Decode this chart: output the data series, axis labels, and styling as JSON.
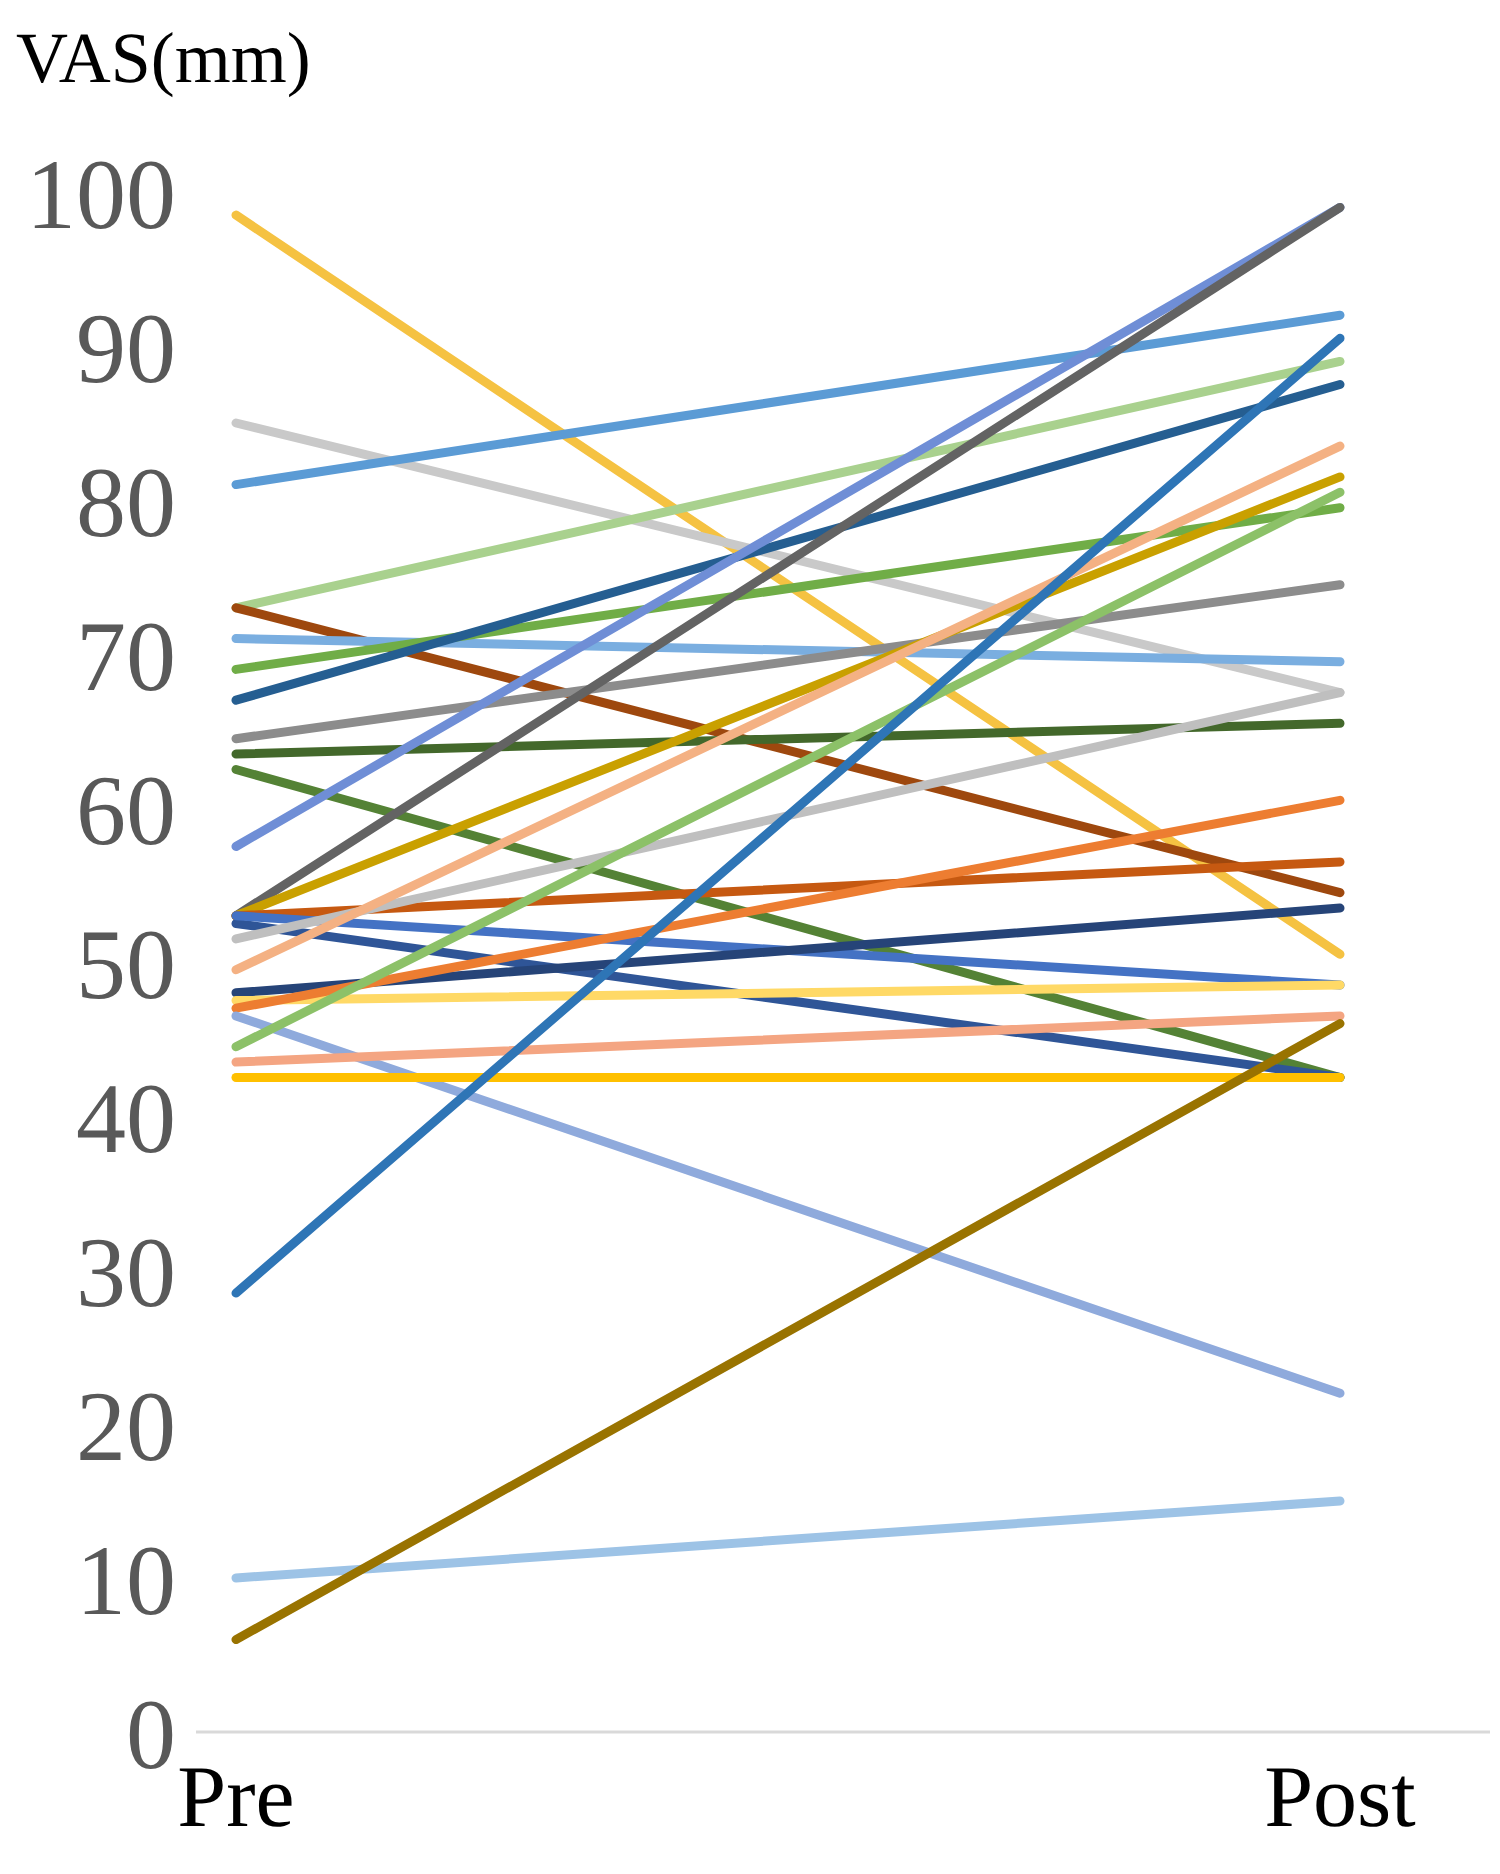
{
  "chart_data": {
    "type": "line",
    "ylabel": "VAS(mm)",
    "categories": [
      "Pre",
      "Post"
    ],
    "ylim": [
      0,
      100
    ],
    "yticks": [
      0,
      10,
      20,
      30,
      40,
      50,
      60,
      70,
      80,
      90,
      100
    ],
    "grid": false,
    "legend": false,
    "marker": "none",
    "line_style": "solid",
    "series": [
      {
        "color": "#f5c242",
        "values": [
          98.5,
          50.5
        ]
      },
      {
        "color": "#c9c9c9",
        "values": [
          85,
          67.5
        ]
      },
      {
        "color": "#5b9bd5",
        "values": [
          81,
          92
        ]
      },
      {
        "color": "#a9d18e",
        "values": [
          73,
          89
        ]
      },
      {
        "color": "#9e480e",
        "values": [
          73,
          54.5
        ]
      },
      {
        "color": "#7aaee0",
        "values": [
          71,
          69.5
        ]
      },
      {
        "color": "#70ad47",
        "values": [
          69,
          79.5
        ]
      },
      {
        "color": "#255e91",
        "values": [
          67,
          87.5
        ]
      },
      {
        "color": "#8c8c8c",
        "values": [
          64.5,
          74.5
        ]
      },
      {
        "color": "#43682b",
        "values": [
          63.5,
          65.5
        ]
      },
      {
        "color": "#548235",
        "values": [
          62.5,
          42.5
        ]
      },
      {
        "color": "#6f8ed6",
        "values": [
          57.5,
          99
        ]
      },
      {
        "color": "#636363",
        "values": [
          53,
          99
        ]
      },
      {
        "color": "#c9a000",
        "values": [
          53,
          81.5
        ]
      },
      {
        "color": "#c65911",
        "values": [
          53,
          56.5
        ]
      },
      {
        "color": "#2f5597",
        "values": [
          52.5,
          42.5
        ]
      },
      {
        "color": "#4472c4",
        "values": [
          53,
          48.5
        ]
      },
      {
        "color": "#bfbfbf",
        "values": [
          51.5,
          67.5
        ]
      },
      {
        "color": "#f4b183",
        "values": [
          49.5,
          83.5
        ]
      },
      {
        "color": "#264478",
        "values": [
          48,
          53.5
        ]
      },
      {
        "color": "#ffd966",
        "values": [
          47.5,
          48.5
        ]
      },
      {
        "color": "#ed7d31",
        "values": [
          47,
          60.5
        ]
      },
      {
        "color": "#8faadc",
        "values": [
          46.5,
          22
        ]
      },
      {
        "color": "#8cc168",
        "values": [
          44.5,
          80.5
        ]
      },
      {
        "color": "#f4a582",
        "values": [
          43.5,
          46.5
        ]
      },
      {
        "color": "#ffc000",
        "values": [
          42.5,
          42.5
        ]
      },
      {
        "color": "#2e75b6",
        "values": [
          28.5,
          90.5
        ]
      },
      {
        "color": "#9dc3e6",
        "values": [
          10,
          15
        ]
      },
      {
        "color": "#997300",
        "values": [
          6,
          46
        ]
      }
    ]
  }
}
